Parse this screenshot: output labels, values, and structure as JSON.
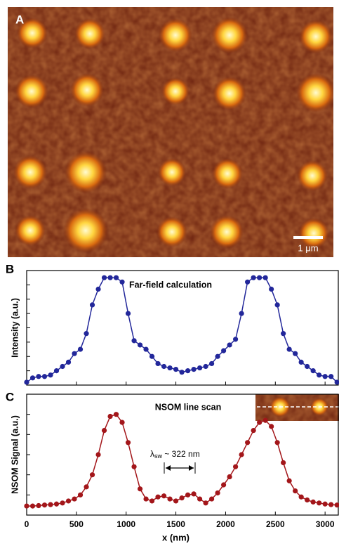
{
  "image_panel": {
    "label": "A",
    "scale_bar": "1 μm"
  },
  "chart_data": [
    {
      "type": "line",
      "label": "B",
      "ylabel": "Intensity (a.u.)",
      "annotation": "Far-field calculation",
      "xlim": [
        0,
        3140
      ],
      "xticks": [
        0,
        500,
        1000,
        1500,
        2000,
        2500,
        3000
      ],
      "ylim": [
        0,
        8
      ],
      "yticks": [
        0,
        1,
        2,
        3,
        4,
        5,
        6,
        7,
        8
      ],
      "x": [
        0,
        60,
        120,
        180,
        240,
        300,
        360,
        420,
        480,
        540,
        600,
        660,
        720,
        780,
        840,
        900,
        960,
        1020,
        1080,
        1140,
        1200,
        1260,
        1320,
        1380,
        1440,
        1500,
        1560,
        1620,
        1680,
        1740,
        1800,
        1860,
        1920,
        1980,
        2040,
        2100,
        2160,
        2220,
        2280,
        2340,
        2400,
        2460,
        2520,
        2580,
        2640,
        2700,
        2760,
        2820,
        2880,
        2940,
        3000,
        3060,
        3120
      ],
      "series": [
        {
          "color": "#22279a",
          "values": [
            0.2,
            0.5,
            0.6,
            0.6,
            0.7,
            1.0,
            1.3,
            1.6,
            2.2,
            2.5,
            3.6,
            5.6,
            6.7,
            7.5,
            7.5,
            7.5,
            7.2,
            5.0,
            3.1,
            2.8,
            2.5,
            2.0,
            1.5,
            1.3,
            1.2,
            1.1,
            0.9,
            1.0,
            1.1,
            1.2,
            1.3,
            1.5,
            2.0,
            2.4,
            2.8,
            3.2,
            5.0,
            7.2,
            7.5,
            7.5,
            7.5,
            6.7,
            5.6,
            3.6,
            2.5,
            2.2,
            1.6,
            1.3,
            1.0,
            0.7,
            0.6,
            0.6,
            0.2
          ]
        }
      ]
    },
    {
      "type": "line",
      "label": "C",
      "ylabel": "NSOM Signal (a.u.)",
      "xlabel": "x (nm)",
      "annotation": "NSOM line scan",
      "wavelength_label": {
        "symbol": "λ",
        "subscript": "sw",
        "text": " ~ 322 nm"
      },
      "xlim": [
        0,
        3140
      ],
      "xticks": [
        0,
        500,
        1000,
        1500,
        2000,
        2500,
        3000
      ],
      "ylim": [
        0,
        6
      ],
      "yticks": [
        0,
        1,
        2,
        3,
        4,
        5,
        6
      ],
      "x": [
        0,
        60,
        120,
        180,
        240,
        300,
        360,
        420,
        480,
        540,
        600,
        660,
        720,
        780,
        840,
        900,
        960,
        1020,
        1080,
        1140,
        1200,
        1260,
        1320,
        1380,
        1440,
        1500,
        1560,
        1620,
        1680,
        1740,
        1800,
        1860,
        1920,
        1980,
        2040,
        2100,
        2160,
        2220,
        2280,
        2340,
        2400,
        2460,
        2520,
        2580,
        2640,
        2700,
        2760,
        2820,
        2880,
        2940,
        3000,
        3060,
        3120
      ],
      "series": [
        {
          "color": "#a3161a",
          "values": [
            0.45,
            0.45,
            0.47,
            0.5,
            0.52,
            0.55,
            0.6,
            0.7,
            0.8,
            1.0,
            1.4,
            2.0,
            3.0,
            4.2,
            4.9,
            5.0,
            4.6,
            3.6,
            2.4,
            1.3,
            0.8,
            0.7,
            0.9,
            0.95,
            0.8,
            0.7,
            0.85,
            1.0,
            1.05,
            0.8,
            0.6,
            0.8,
            1.1,
            1.5,
            1.9,
            2.4,
            3.0,
            3.6,
            4.2,
            4.6,
            4.7,
            4.4,
            3.6,
            2.6,
            1.7,
            1.2,
            0.9,
            0.75,
            0.65,
            0.6,
            0.55,
            0.52,
            0.5
          ]
        }
      ]
    }
  ]
}
